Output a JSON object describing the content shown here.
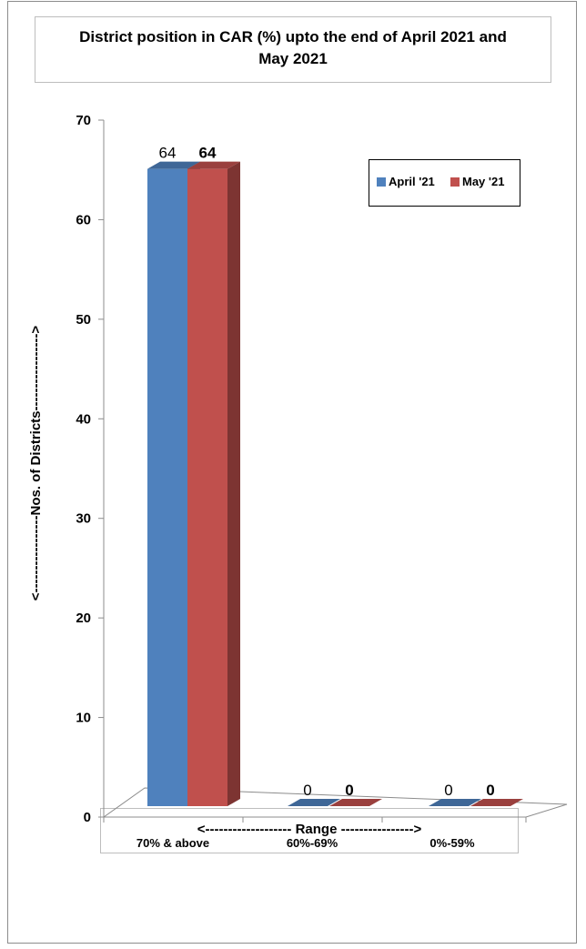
{
  "chart_data": {
    "type": "bar",
    "title": "District position in CAR (%) upto the end of  April 2021 and May 2021",
    "xlabel": "<------------------- Range ---------------->",
    "ylabel": "<-----------------Nos. of Districts----------------->",
    "categories": [
      "70% & above",
      "60%-69%",
      "0%-59%"
    ],
    "series": [
      {
        "name": "April '21",
        "values": [
          64,
          0,
          0
        ],
        "color": "#4f81bd",
        "label_weight": "normal"
      },
      {
        "name": "May '21",
        "values": [
          64,
          0,
          0
        ],
        "color": "#c0504d",
        "label_weight": "bold"
      }
    ],
    "ylim": [
      0,
      70
    ],
    "yticks": [
      0,
      10,
      20,
      30,
      40,
      50,
      60,
      70
    ],
    "legend_position": "top-right",
    "grid": false
  }
}
